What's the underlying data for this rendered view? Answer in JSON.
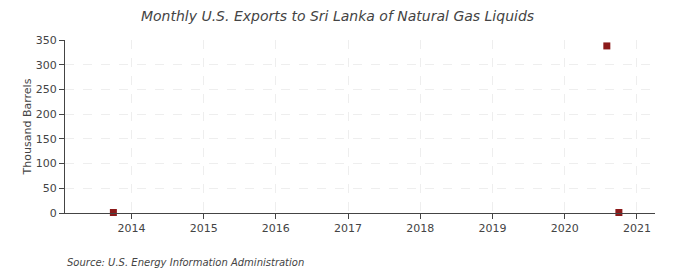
{
  "chart_data": {
    "type": "scatter",
    "title": "Monthly U.S. Exports to Sri Lanka of Natural Gas Liquids",
    "y_label": "Thousand Barrels",
    "annotations": [
      "Source: U.S. Energy Information Administration"
    ],
    "x": [
      2013.75,
      2020.583,
      2020.75
    ],
    "values": [
      1,
      338,
      1
    ],
    "color": "#8b1a1a",
    "marker": "square",
    "xlim": [
      2013.08,
      2021.25
    ],
    "xticks": [
      2014,
      2015,
      2016,
      2017,
      2018,
      2019,
      2020,
      2021
    ],
    "ylim": [
      0,
      350
    ],
    "yticks": [
      0,
      50,
      100,
      150,
      200,
      250,
      300,
      350
    ],
    "grid": true
  }
}
